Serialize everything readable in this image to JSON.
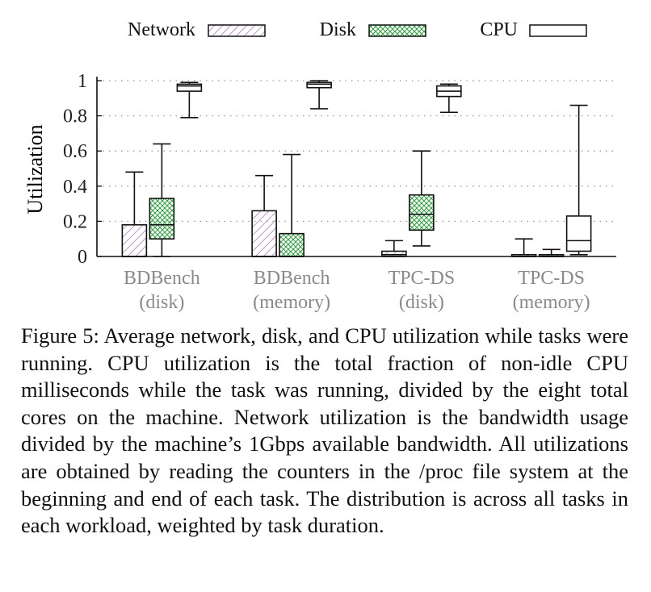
{
  "chart_data": {
    "type": "boxplot",
    "ylabel": "Utilization",
    "ylim": [
      0,
      1
    ],
    "yticks": [
      {
        "value": 0,
        "label": "0"
      },
      {
        "value": 0.2,
        "label": "0.2"
      },
      {
        "value": 0.4,
        "label": "0.4"
      },
      {
        "value": 0.6,
        "label": "0.6"
      },
      {
        "value": 0.8,
        "label": "0.8"
      },
      {
        "value": 1,
        "label": "1"
      }
    ],
    "grid": true,
    "legend_position": "top",
    "categories": [
      {
        "line1": "BDBench",
        "line2": "(disk)"
      },
      {
        "line1": "BDBench",
        "line2": "(memory)"
      },
      {
        "line1": "TPC-DS",
        "line2": "(disk)"
      },
      {
        "line1": "TPC-DS",
        "line2": "(memory)"
      }
    ],
    "series": [
      {
        "name": "Network",
        "pattern": "diagonal-hatch",
        "color": "#9b59b6",
        "boxes": [
          {
            "whisker_low": 0,
            "q1": 0,
            "median": 0,
            "q3": 0.18,
            "whisker_high": 0.48
          },
          {
            "whisker_low": 0,
            "q1": 0,
            "median": 0,
            "q3": 0.26,
            "whisker_high": 0.46
          },
          {
            "whisker_low": 0,
            "q1": 0,
            "median": 0.01,
            "q3": 0.03,
            "whisker_high": 0.09
          },
          {
            "whisker_low": 0,
            "q1": 0,
            "median": 0,
            "q3": 0.01,
            "whisker_high": 0.1
          }
        ]
      },
      {
        "name": "Disk",
        "pattern": "crosshatch",
        "color": "#2e9e3e",
        "boxes": [
          {
            "whisker_low": 0,
            "q1": 0.1,
            "median": 0.18,
            "q3": 0.33,
            "whisker_high": 0.64
          },
          {
            "whisker_low": 0,
            "q1": 0,
            "median": 0,
            "q3": 0.13,
            "whisker_high": 0.58
          },
          {
            "whisker_low": 0.06,
            "q1": 0.15,
            "median": 0.24,
            "q3": 0.35,
            "whisker_high": 0.6
          },
          {
            "whisker_low": 0,
            "q1": 0,
            "median": 0,
            "q3": 0.01,
            "whisker_high": 0.04
          }
        ]
      },
      {
        "name": "CPU",
        "pattern": "none",
        "color": "#111111",
        "boxes": [
          {
            "whisker_low": 0.79,
            "q1": 0.94,
            "median": 0.97,
            "q3": 0.98,
            "whisker_high": 0.99
          },
          {
            "whisker_low": 0.84,
            "q1": 0.96,
            "median": 0.98,
            "q3": 0.99,
            "whisker_high": 1.0
          },
          {
            "whisker_low": 0.82,
            "q1": 0.91,
            "median": 0.94,
            "q3": 0.97,
            "whisker_high": 0.98
          },
          {
            "whisker_low": 0.01,
            "q1": 0.03,
            "median": 0.09,
            "q3": 0.23,
            "whisker_high": 0.86
          }
        ]
      }
    ]
  },
  "caption": "Figure 5: Average network, disk, and CPU utilization while tasks were running. CPU utilization is the total fraction of non-idle CPU milliseconds while the task was running, divided by the eight total cores on the machine. Network utilization is the bandwidth usage divided by the machine’s 1Gbps available bandwidth. All utilizations are obtained by reading the counters in the /proc file system at the beginning and end of each task. The distribution is across all tasks in each workload, weighted by task duration."
}
